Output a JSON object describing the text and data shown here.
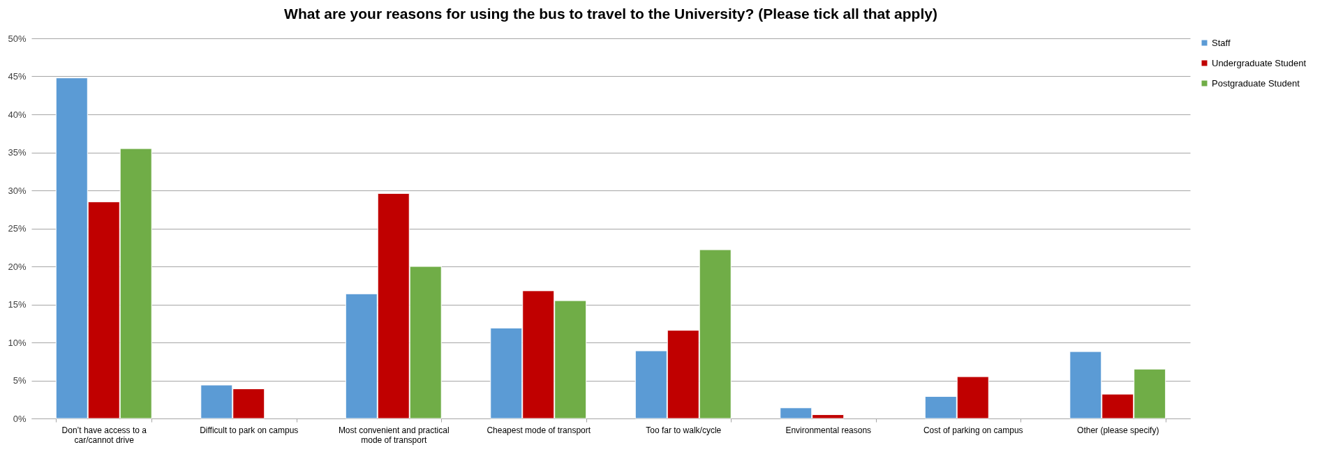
{
  "chart_data": {
    "type": "bar",
    "title": "What are your reasons for using the bus to travel to the University? (Please tick all that apply)",
    "categories": [
      "Don’t have access to a car/cannot drive",
      "Difficult to park on campus",
      "Most convenient and practical mode of transport",
      "Cheapest mode of transport",
      "Too far to walk/cycle",
      "Environmental reasons",
      "Cost of parking on campus",
      "Other (please specify)"
    ],
    "series": [
      {
        "name": "Staff",
        "color": "#5b9bd5",
        "values": [
          44.8,
          4.4,
          16.4,
          11.9,
          8.9,
          1.4,
          2.9,
          8.8
        ]
      },
      {
        "name": "Undergraduate Student",
        "color": "#c00000",
        "values": [
          28.5,
          3.9,
          29.6,
          16.8,
          11.6,
          0.5,
          5.5,
          3.2
        ]
      },
      {
        "name": "Postgraduate Student",
        "color": "#70ad47",
        "values": [
          35.5,
          null,
          20.0,
          15.5,
          22.2,
          null,
          null,
          6.5
        ]
      }
    ],
    "ylim": [
      0,
      50
    ],
    "yticks": [
      {
        "value": 0,
        "label": "0%"
      },
      {
        "value": 5,
        "label": "5%"
      },
      {
        "value": 10,
        "label": "10%"
      },
      {
        "value": 15,
        "label": "15%"
      },
      {
        "value": 20,
        "label": "20%"
      },
      {
        "value": 25,
        "label": "25%"
      },
      {
        "value": 30,
        "label": "30%"
      },
      {
        "value": 35,
        "label": "35%"
      },
      {
        "value": 40,
        "label": "40%"
      },
      {
        "value": 45,
        "label": "45%"
      },
      {
        "value": 50,
        "label": "50%"
      }
    ],
    "grid": "y",
    "legend": "right"
  }
}
